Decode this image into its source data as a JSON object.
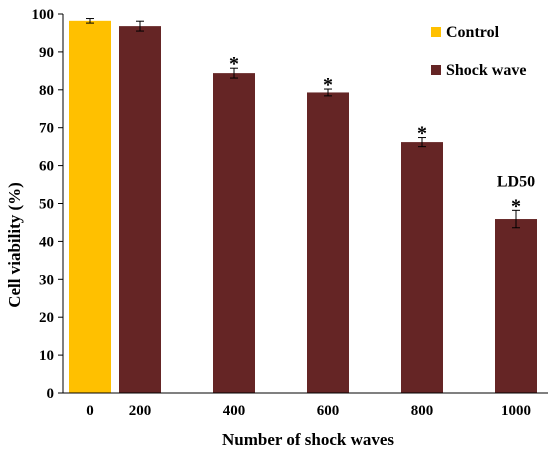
{
  "chart_data": {
    "type": "bar",
    "categories": [
      "0",
      "200",
      "400",
      "600",
      "800",
      "1000"
    ],
    "values": [
      98.2,
      96.8,
      84.4,
      79.3,
      66.2,
      45.9
    ],
    "errors": [
      0.6,
      1.3,
      1.3,
      0.9,
      1.2,
      2.3
    ],
    "series_of_bar": [
      "Control",
      "Shock wave",
      "Shock wave",
      "Shock wave",
      "Shock wave",
      "Shock wave"
    ],
    "significance": [
      "",
      "",
      "*",
      "*",
      "*",
      "*"
    ],
    "annotation": {
      "text": "LD50",
      "category": "1000"
    },
    "legend": [
      {
        "name": "Control",
        "color": "#FFC000"
      },
      {
        "name": "Shock wave",
        "color": "#652525"
      }
    ],
    "legend_position": "top-right",
    "xlabel": "Number of shock waves",
    "ylabel": "Cell viability (%)",
    "ylim": [
      0,
      100
    ],
    "yticks": [
      0,
      10,
      20,
      30,
      40,
      50,
      60,
      70,
      80,
      90,
      100
    ],
    "grid": false
  }
}
